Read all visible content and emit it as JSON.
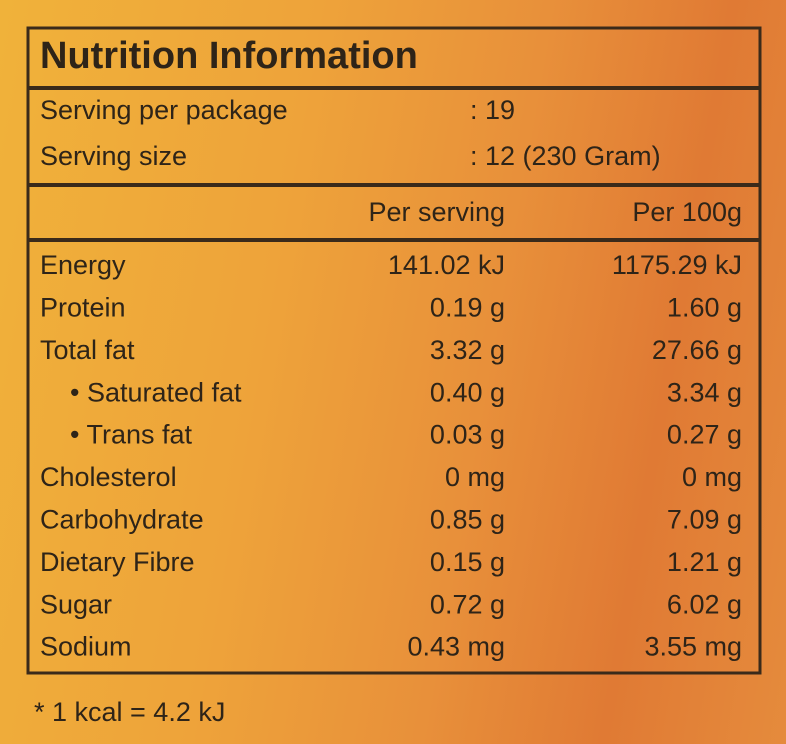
{
  "header": {
    "title": "Nutrition Information"
  },
  "serving": [
    {
      "label": "Serving per package",
      "value": ": 19"
    },
    {
      "label": "Serving size",
      "value": ": 12 (230 Gram)"
    }
  ],
  "table": {
    "columns": [
      "Per serving",
      "Per 100g"
    ],
    "rows": [
      [
        "Energy",
        "141.02 kJ",
        "1175.29 kJ"
      ],
      [
        "Protein",
        "0.19 g",
        "1.60 g"
      ],
      [
        "Total fat",
        "3.32 g",
        "27.66 g"
      ],
      [
        "• Saturated fat",
        "0.40 g",
        "3.34 g"
      ],
      [
        "• Trans fat",
        "0.03 g",
        "0.27 g"
      ],
      [
        "Cholesterol",
        "0 mg",
        "0 mg"
      ],
      [
        "Carbohydrate",
        "0.85 g",
        "7.09 g"
      ],
      [
        "Dietary Fibre",
        "0.15 g",
        "1.21 g"
      ],
      [
        "Sugar",
        "0.72 g",
        "6.02 g"
      ],
      [
        "Sodium",
        "0.43 mg",
        "3.55 mg"
      ]
    ]
  },
  "footnote": "* 1 kcal = 4.2 kJ"
}
